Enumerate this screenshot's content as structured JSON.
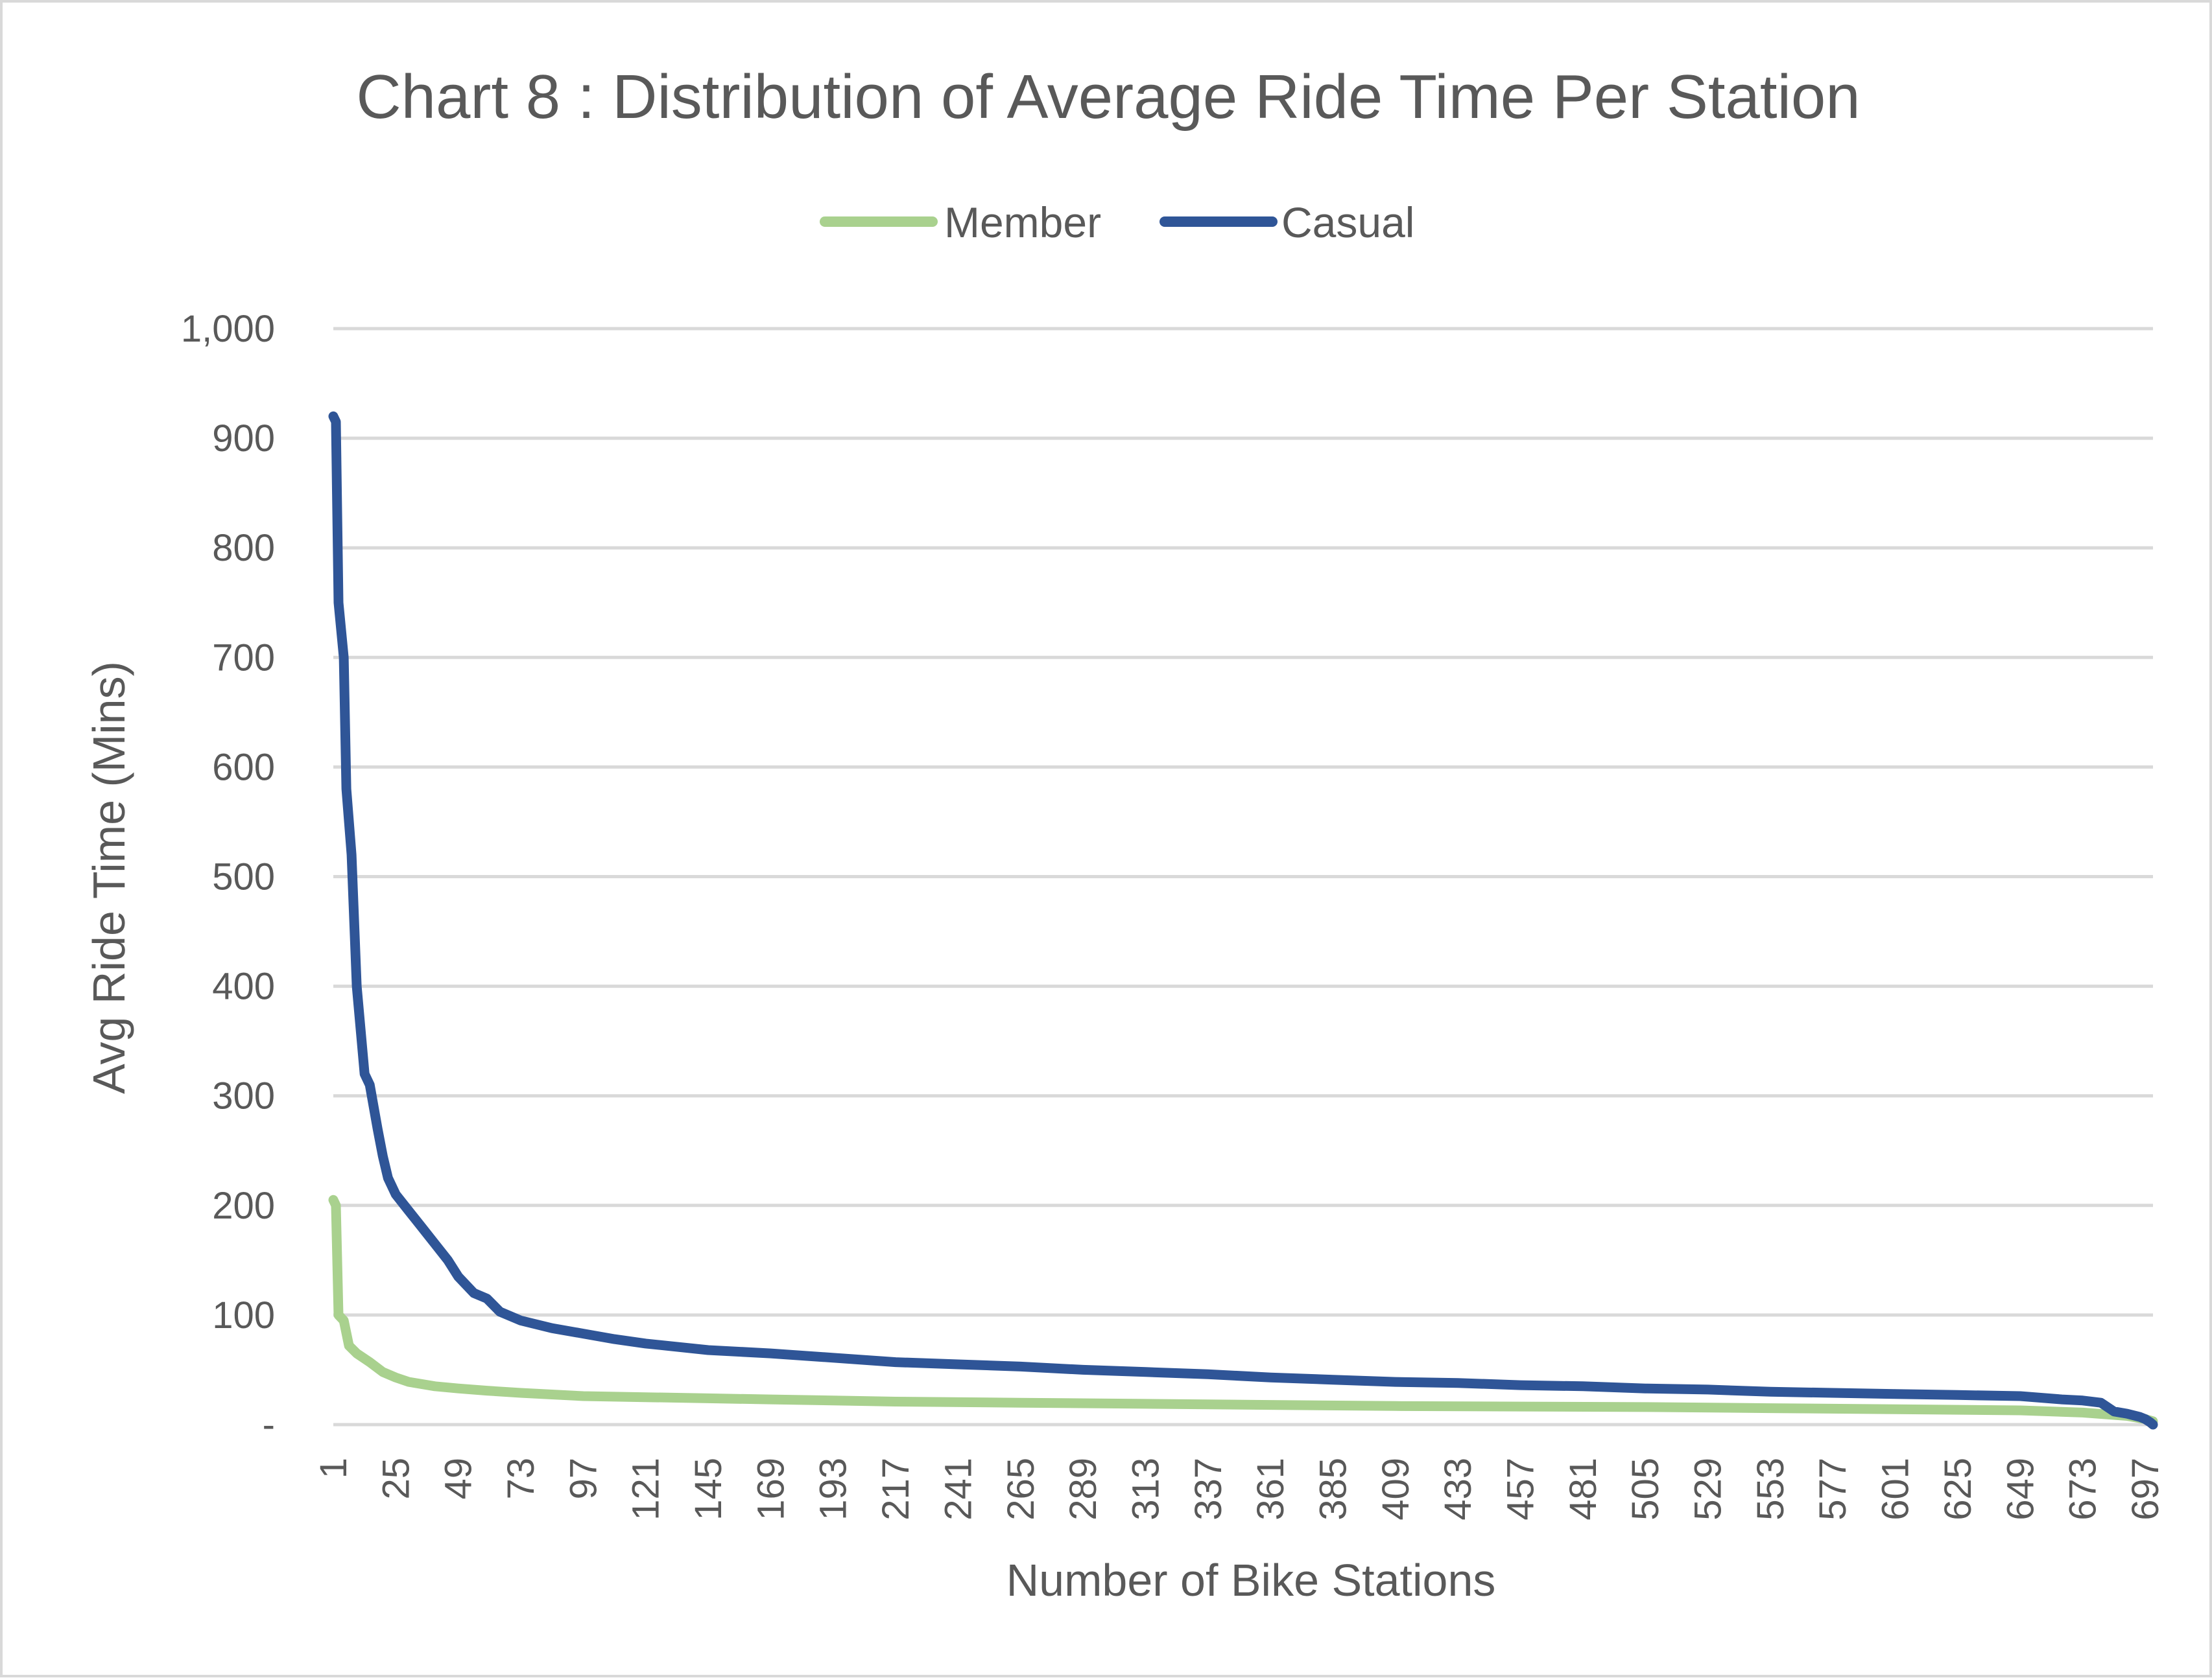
{
  "chart_data": {
    "type": "line",
    "title": "Chart 8 : Distribution of Average Ride Time Per Station",
    "xlabel": "Number of Bike Stations",
    "ylabel": "Avg Ride Time (Mins)",
    "ylim": [
      0,
      1000
    ],
    "xlim": [
      1,
      700
    ],
    "yticks": [
      "-",
      "100",
      "200",
      "300",
      "400",
      "500",
      "600",
      "700",
      "800",
      "900",
      "1,000"
    ],
    "yticks_values": [
      0,
      100,
      200,
      300,
      400,
      500,
      600,
      700,
      800,
      900,
      1000
    ],
    "xticks": [
      "1",
      "25",
      "49",
      "73",
      "97",
      "121",
      "145",
      "169",
      "193",
      "217",
      "241",
      "265",
      "289",
      "313",
      "337",
      "361",
      "385",
      "409",
      "433",
      "457",
      "481",
      "505",
      "529",
      "553",
      "577",
      "601",
      "625",
      "649",
      "673",
      "697"
    ],
    "grid": true,
    "legend_position": "top",
    "series": [
      {
        "name": "Member",
        "color": "#a9d18e",
        "points": [
          [
            1,
            205
          ],
          [
            2,
            200
          ],
          [
            3,
            100
          ],
          [
            5,
            95
          ],
          [
            7,
            72
          ],
          [
            10,
            65
          ],
          [
            15,
            57
          ],
          [
            20,
            48
          ],
          [
            25,
            43
          ],
          [
            30,
            39
          ],
          [
            40,
            35
          ],
          [
            49,
            33
          ],
          [
            60,
            31
          ],
          [
            73,
            29
          ],
          [
            97,
            26
          ],
          [
            121,
            25
          ],
          [
            145,
            24
          ],
          [
            169,
            23
          ],
          [
            193,
            22
          ],
          [
            217,
            21
          ],
          [
            265,
            20
          ],
          [
            313,
            19
          ],
          [
            361,
            18
          ],
          [
            409,
            17
          ],
          [
            457,
            16.5
          ],
          [
            505,
            16
          ],
          [
            553,
            15
          ],
          [
            601,
            14
          ],
          [
            649,
            13
          ],
          [
            673,
            11
          ],
          [
            690,
            8
          ],
          [
            697,
            5
          ],
          [
            700,
            3
          ]
        ]
      },
      {
        "name": "Casual",
        "color": "#2f5597",
        "points": [
          [
            1,
            920
          ],
          [
            2,
            915
          ],
          [
            3,
            750
          ],
          [
            5,
            700
          ],
          [
            6,
            580
          ],
          [
            8,
            520
          ],
          [
            10,
            400
          ],
          [
            13,
            320
          ],
          [
            15,
            310
          ],
          [
            18,
            270
          ],
          [
            20,
            245
          ],
          [
            22,
            225
          ],
          [
            25,
            210
          ],
          [
            30,
            195
          ],
          [
            35,
            180
          ],
          [
            40,
            165
          ],
          [
            45,
            150
          ],
          [
            49,
            135
          ],
          [
            55,
            120
          ],
          [
            60,
            115
          ],
          [
            65,
            103
          ],
          [
            73,
            95
          ],
          [
            85,
            88
          ],
          [
            97,
            83
          ],
          [
            109,
            78
          ],
          [
            121,
            74
          ],
          [
            133,
            71
          ],
          [
            145,
            68
          ],
          [
            169,
            65
          ],
          [
            193,
            61
          ],
          [
            217,
            57
          ],
          [
            241,
            55
          ],
          [
            265,
            53
          ],
          [
            289,
            50
          ],
          [
            313,
            48
          ],
          [
            337,
            46
          ],
          [
            361,
            43
          ],
          [
            385,
            41
          ],
          [
            409,
            39
          ],
          [
            433,
            38
          ],
          [
            457,
            36
          ],
          [
            481,
            35
          ],
          [
            505,
            33
          ],
          [
            529,
            32
          ],
          [
            553,
            30
          ],
          [
            577,
            29
          ],
          [
            601,
            28
          ],
          [
            625,
            27
          ],
          [
            649,
            26
          ],
          [
            665,
            23
          ],
          [
            673,
            22
          ],
          [
            680,
            20
          ],
          [
            685,
            12
          ],
          [
            690,
            10
          ],
          [
            695,
            7
          ],
          [
            697,
            5
          ],
          [
            699,
            2
          ],
          [
            700,
            0
          ]
        ]
      }
    ]
  }
}
